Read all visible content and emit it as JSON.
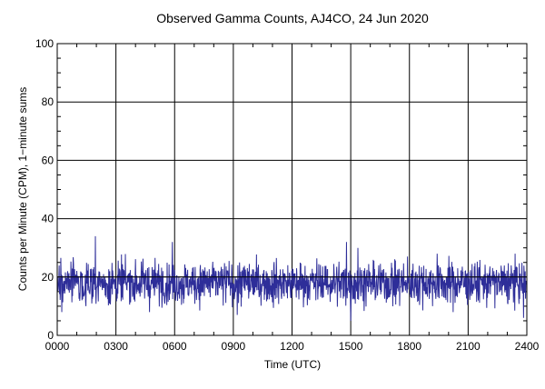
{
  "chart_data": {
    "type": "line",
    "title": "Observed Gamma Counts, AJ4CO, 24 Jun 2020",
    "xlabel": "Time (UTC)",
    "ylabel": "Counts per Minute (CPM), 1−minute sums",
    "x_ticks": [
      "0000",
      "0300",
      "0600",
      "0900",
      "1200",
      "1500",
      "1800",
      "2100",
      "2400"
    ],
    "y_ticks": [
      0,
      20,
      40,
      60,
      80,
      100
    ],
    "xlim_minutes": [
      0,
      1440
    ],
    "ylim": [
      0,
      100
    ],
    "grid": true,
    "reference_line_y": 20,
    "series": [
      {
        "color": "#2e2e99",
        "sampling_interval_minutes": 1,
        "mean": 18,
        "min": 5,
        "max": 34,
        "notable_peaks": [
          {
            "time": "0157",
            "value": 34
          },
          {
            "time": "0553",
            "value": 32
          },
          {
            "time": "1447",
            "value": 32
          },
          {
            "time": "1522",
            "value": 30
          },
          {
            "time": "1925",
            "value": 28
          }
        ],
        "notable_dips": [
          {
            "time": "0014",
            "value": 8
          },
          {
            "time": "0912",
            "value": 7
          },
          {
            "time": "1500",
            "value": 5
          },
          {
            "time": "2350",
            "value": 6
          }
        ]
      }
    ]
  }
}
